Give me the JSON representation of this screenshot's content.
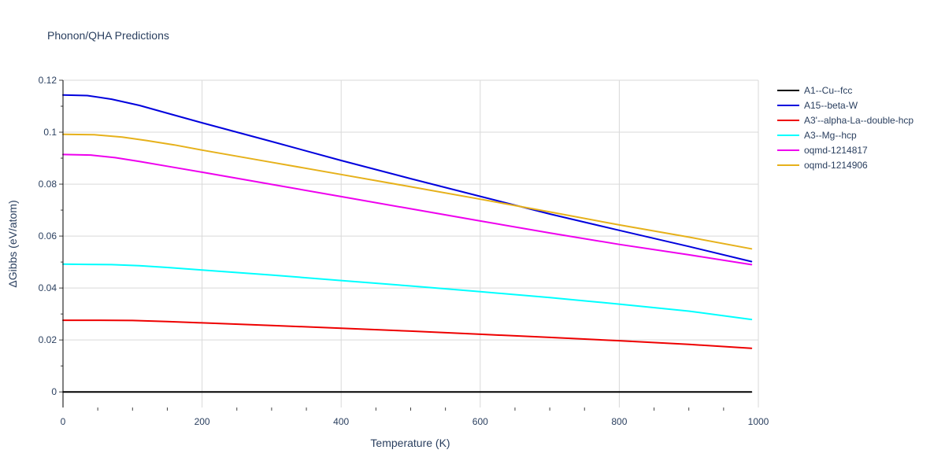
{
  "chart_data": {
    "type": "line",
    "title": "Phonon/QHA Predictions",
    "xlabel": "Temperature (K)",
    "ylabel": "ΔGibbs (eV/atom)",
    "xlim": [
      0,
      1000
    ],
    "ylim": [
      -0.006,
      0.12
    ],
    "x_ticks": [
      0,
      200,
      400,
      600,
      800,
      1000
    ],
    "x_tick_labels": [
      "0",
      "200",
      "400",
      "600",
      "800",
      "1000"
    ],
    "y_ticks": [
      0,
      0.02,
      0.04,
      0.06,
      0.08,
      0.1,
      0.12
    ],
    "y_tick_labels": [
      "0",
      "0.02",
      "0.04",
      "0.06",
      "0.08",
      "0.1",
      "0.12"
    ],
    "grid": true,
    "legend_position": "right",
    "series": [
      {
        "name": "A1--Cu--fcc",
        "color": "#000000",
        "x": [
          0,
          990
        ],
        "y": [
          0.0,
          0.0
        ]
      },
      {
        "name": "A15--beta-W",
        "color": "#0000dd",
        "x": [
          0,
          35,
          70,
          110,
          150,
          200,
          300,
          400,
          500,
          600,
          700,
          800,
          900,
          990
        ],
        "y": [
          0.1143,
          0.1141,
          0.1127,
          0.1103,
          0.1073,
          0.1036,
          0.0964,
          0.0891,
          0.0821,
          0.0753,
          0.0685,
          0.0622,
          0.056,
          0.0502
        ]
      },
      {
        "name": "A3'--alpha-La--double-hcp",
        "color": "#ee0000",
        "x": [
          0,
          50,
          100,
          150,
          200,
          300,
          400,
          500,
          600,
          700,
          800,
          900,
          990
        ],
        "y": [
          0.0276,
          0.0276,
          0.0275,
          0.0271,
          0.0266,
          0.0256,
          0.0245,
          0.0234,
          0.0222,
          0.021,
          0.0197,
          0.0183,
          0.0168
        ]
      },
      {
        "name": "A3--Mg--hcp",
        "color": "#00ffff",
        "x": [
          0,
          35,
          70,
          110,
          150,
          200,
          300,
          400,
          500,
          600,
          700,
          800,
          900,
          990
        ],
        "y": [
          0.0492,
          0.0491,
          0.049,
          0.0486,
          0.0479,
          0.0469,
          0.045,
          0.0429,
          0.0408,
          0.0386,
          0.0363,
          0.0338,
          0.0311,
          0.0279
        ]
      },
      {
        "name": "oqmd-1214817",
        "color": "#ee00ee",
        "x": [
          0,
          40,
          75,
          110,
          150,
          200,
          300,
          400,
          500,
          600,
          700,
          800,
          900,
          990
        ],
        "y": [
          0.0914,
          0.0912,
          0.0902,
          0.0887,
          0.0869,
          0.0846,
          0.0799,
          0.0752,
          0.0705,
          0.0658,
          0.0612,
          0.0568,
          0.0528,
          0.049
        ]
      },
      {
        "name": "oqmd-1214906",
        "color": "#e6b11b",
        "x": [
          0,
          45,
          85,
          120,
          160,
          200,
          300,
          400,
          500,
          600,
          700,
          800,
          900,
          990
        ],
        "y": [
          0.0992,
          0.099,
          0.0981,
          0.0968,
          0.0951,
          0.0931,
          0.0884,
          0.0837,
          0.079,
          0.0742,
          0.0693,
          0.0643,
          0.0596,
          0.0551
        ]
      }
    ]
  }
}
